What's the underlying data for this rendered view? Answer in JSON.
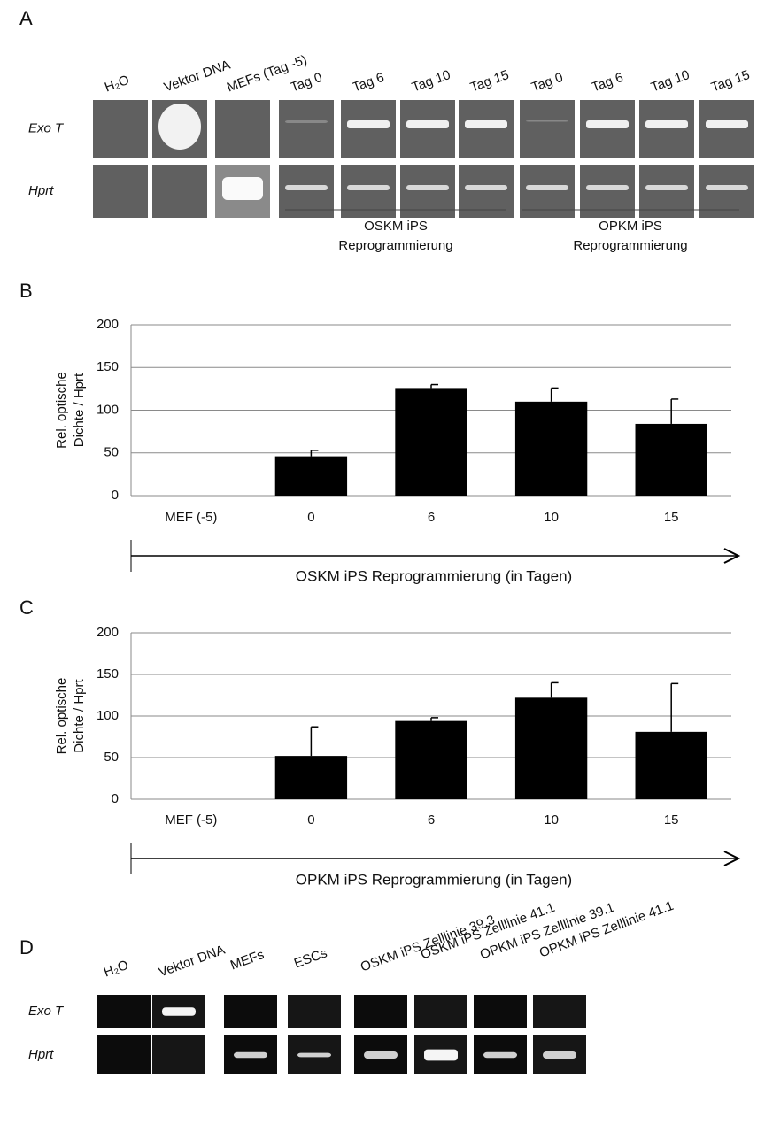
{
  "panels": {
    "A": {
      "label": "A",
      "lanes": [
        "H₂O",
        "Vektor DNA",
        "MEFs (Tag -5)",
        "Tag 0",
        "Tag 6",
        "Tag 10",
        "Tag 15",
        "Tag 0",
        "Tag 6",
        "Tag 10",
        "Tag 15"
      ],
      "rows": [
        "Exo T",
        "Hprt"
      ],
      "groups": [
        {
          "line1": "OSKM iPS",
          "line2": "Reprogrammierung"
        },
        {
          "line1": "OPKM iPS",
          "line2": "Reprogrammierung"
        }
      ]
    },
    "B": {
      "label": "B"
    },
    "C": {
      "label": "C"
    },
    "D": {
      "label": "D",
      "lanes": [
        "H₂O",
        "Vektor DNA",
        "MEFs",
        "ESCs",
        "OSKM iPS Zelllinie 39.3",
        "OSKM iPS Zelllinie 41.1",
        "OPKM iPS Zelllinie 39.1",
        "OPKM iPS Zelllinie 41.1"
      ],
      "rows": [
        "Exo T",
        "Hprt"
      ]
    }
  },
  "chart_data": [
    {
      "type": "bar",
      "ylabel": [
        "Rel. optische",
        "Dichte / Hprt"
      ],
      "xlabel": "OSKM iPS Reprogrammierung (in Tagen)",
      "categories": [
        "MEF (-5)",
        "0",
        "6",
        "10",
        "15"
      ],
      "values": [
        0,
        46,
        126,
        110,
        84
      ],
      "errors": [
        null,
        7,
        4,
        16,
        29
      ],
      "ylim": [
        0,
        200
      ],
      "yticks": [
        0,
        50,
        100,
        150,
        200
      ],
      "grid": true,
      "color": "#000000"
    },
    {
      "type": "bar",
      "ylabel": [
        "Rel. optische",
        "Dichte / Hprt"
      ],
      "xlabel": "OPKM iPS Reprogrammierung (in Tagen)",
      "categories": [
        "MEF (-5)",
        "0",
        "6",
        "10",
        "15"
      ],
      "values": [
        0,
        52,
        94,
        122,
        81
      ],
      "errors": [
        null,
        35,
        4,
        18,
        58
      ],
      "ylim": [
        0,
        200
      ],
      "yticks": [
        0,
        50,
        100,
        150,
        200
      ],
      "grid": true,
      "color": "#000000"
    }
  ]
}
